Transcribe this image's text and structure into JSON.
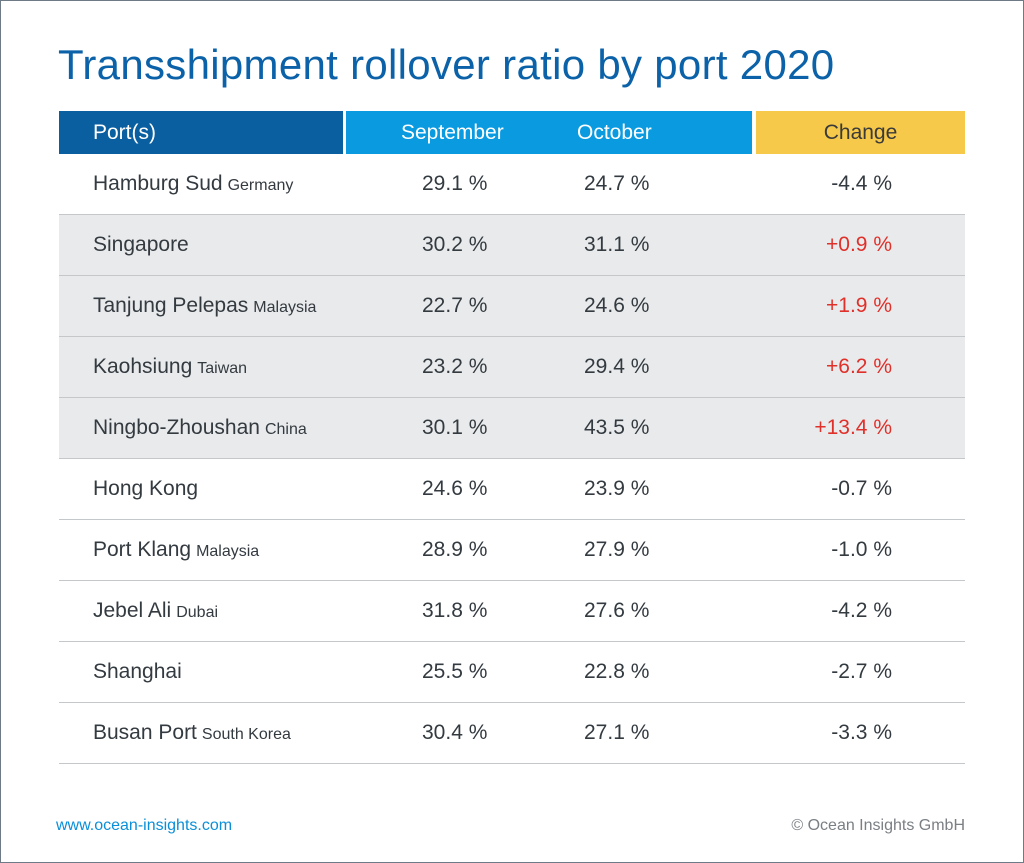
{
  "title": "Transshipment rollover ratio by port 2020",
  "footer": {
    "website": "www.ocean-insights.com",
    "copyright": "© Ocean Insights GmbH"
  },
  "colors": {
    "title": "#0b62a8",
    "header_port": "#0a5fa1",
    "header_months": "#0a9ae0",
    "header_change": "#f6c94a",
    "increase": "#e0302a"
  },
  "chart_data": {
    "type": "table",
    "title": "Transshipment rollover ratio by port 2020",
    "columns": [
      "Port(s)",
      "September",
      "October",
      "Change"
    ],
    "rows": [
      {
        "port": "Hamburg Sud",
        "country": "Germany",
        "september": "29.1 %",
        "october": "24.7 %",
        "change": "-4.4 %",
        "shaded": false
      },
      {
        "port": "Singapore",
        "country": "",
        "september": "30.2 %",
        "october": "31.1 %",
        "change": "+0.9 %",
        "shaded": true
      },
      {
        "port": "Tanjung Pelepas",
        "country": "Malaysia",
        "september": "22.7 %",
        "october": "24.6 %",
        "change": "+1.9 %",
        "shaded": true
      },
      {
        "port": "Kaohsiung",
        "country": "Taiwan",
        "september": "23.2 %",
        "october": "29.4 %",
        "change": "+6.2 %",
        "shaded": true
      },
      {
        "port": "Ningbo-Zhoushan",
        "country": "China",
        "september": "30.1 %",
        "october": "43.5 %",
        "change": "+13.4 %",
        "shaded": true
      },
      {
        "port": "Hong Kong",
        "country": "",
        "september": "24.6 %",
        "october": "23.9 %",
        "change": "-0.7 %",
        "shaded": false
      },
      {
        "port": "Port Klang",
        "country": "Malaysia",
        "september": "28.9 %",
        "october": "27.9 %",
        "change": "-1.0 %",
        "shaded": false
      },
      {
        "port": "Jebel Ali",
        "country": "Dubai",
        "september": "31.8 %",
        "october": "27.6 %",
        "change": "-4.2 %",
        "shaded": false
      },
      {
        "port": "Shanghai",
        "country": "",
        "september": "25.5 %",
        "october": "22.8 %",
        "change": "-2.7 %",
        "shaded": false
      },
      {
        "port": "Busan Port",
        "country": "South Korea",
        "september": "30.4 %",
        "october": "27.1 %",
        "change": "-3.3 %",
        "shaded": false
      }
    ]
  }
}
